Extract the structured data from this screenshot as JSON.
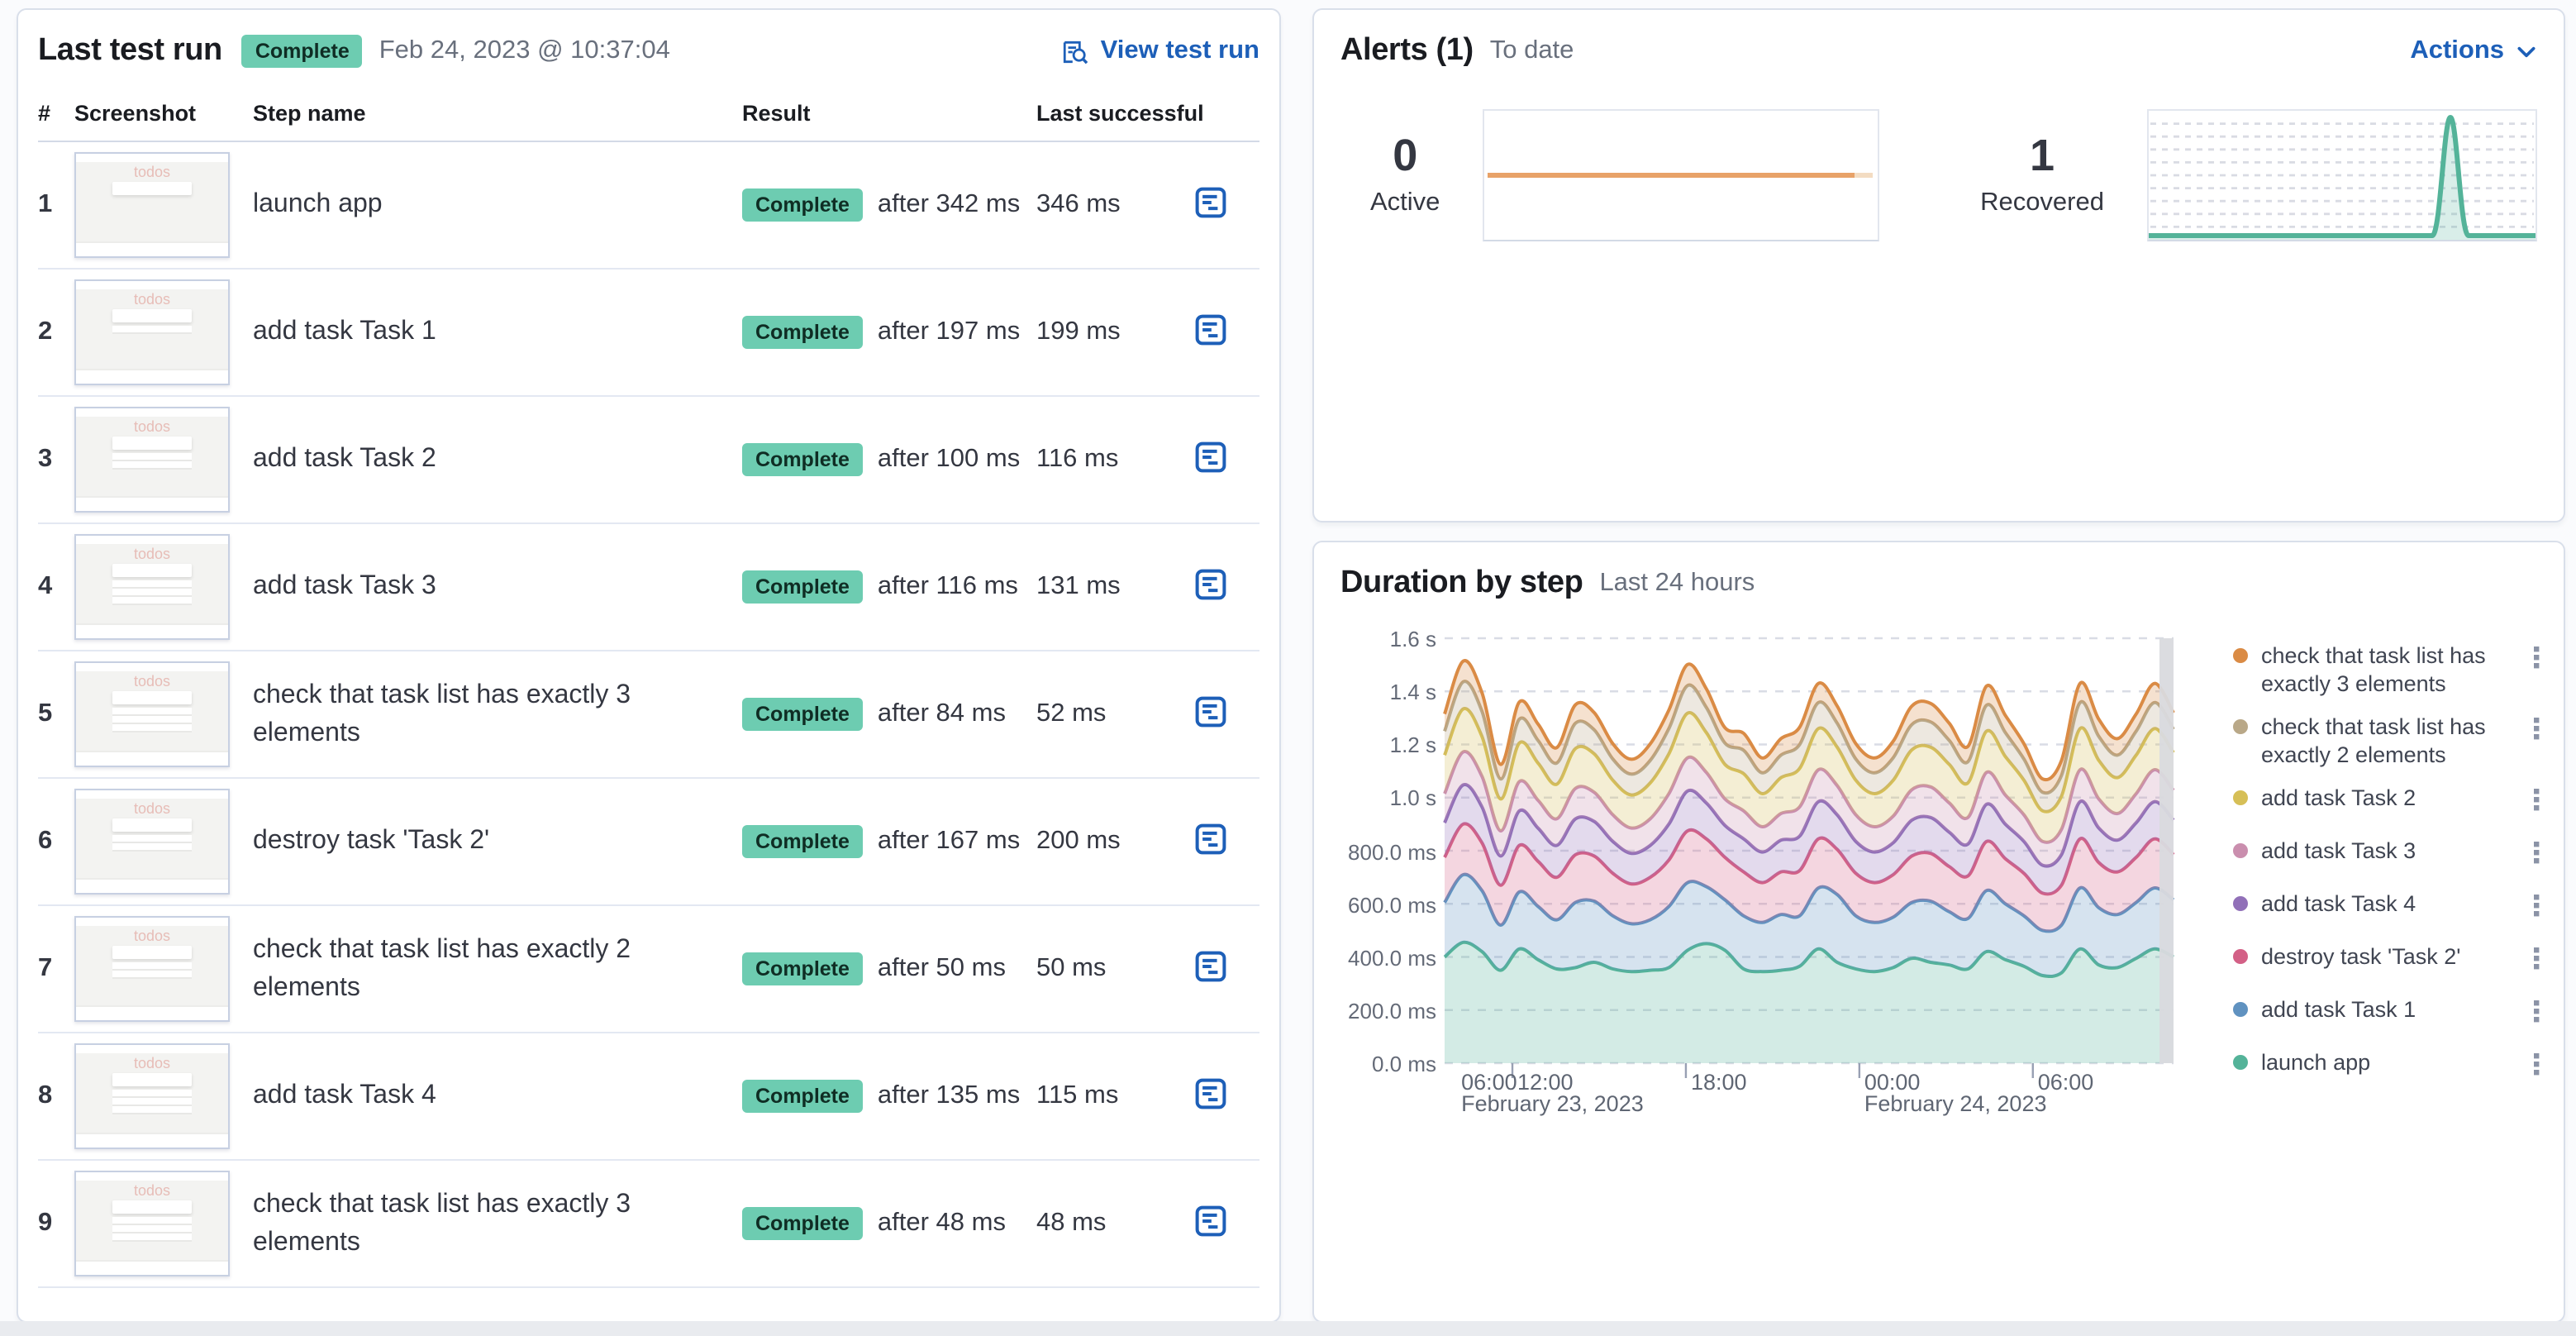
{
  "colors": {
    "link_blue": "#1d5fb8",
    "badge_green": "#6dccb1",
    "active_orange": "#e8a268",
    "recovered_green": "#54b399",
    "grid_dash": "#d9dce5",
    "current_bucket_bar": "#d9dade"
  },
  "left_panel": {
    "title": "Last test run",
    "status_badge": "Complete",
    "timestamp": "Feb 24, 2023 @ 10:37:04",
    "view_link": "View test run",
    "thumb_title": "todos",
    "columns": {
      "num": "#",
      "screenshot": "Screenshot",
      "step": "Step name",
      "result": "Result",
      "last_successful": "Last successful"
    },
    "steps": [
      {
        "num": "1",
        "name": "launch app",
        "result": "Complete",
        "after": "after 342 ms",
        "last": "346 ms",
        "thumb_tasks": 0
      },
      {
        "num": "2",
        "name": "add task Task 1",
        "result": "Complete",
        "after": "after 197 ms",
        "last": "199 ms",
        "thumb_tasks": 1
      },
      {
        "num": "3",
        "name": "add task Task 2",
        "result": "Complete",
        "after": "after 100 ms",
        "last": "116 ms",
        "thumb_tasks": 2
      },
      {
        "num": "4",
        "name": "add task Task 3",
        "result": "Complete",
        "after": "after 116 ms",
        "last": "131 ms",
        "thumb_tasks": 3
      },
      {
        "num": "5",
        "name": "check that task list has exactly 3 elements",
        "result": "Complete",
        "after": "after 84 ms",
        "last": "52 ms",
        "thumb_tasks": 3
      },
      {
        "num": "6",
        "name": "destroy task 'Task 2'",
        "result": "Complete",
        "after": "after 167 ms",
        "last": "200 ms",
        "thumb_tasks": 2
      },
      {
        "num": "7",
        "name": "check that task list has exactly 2 elements",
        "result": "Complete",
        "after": "after 50 ms",
        "last": "50 ms",
        "thumb_tasks": 2
      },
      {
        "num": "8",
        "name": "add task Task 4",
        "result": "Complete",
        "after": "after 135 ms",
        "last": "115 ms",
        "thumb_tasks": 3
      },
      {
        "num": "9",
        "name": "check that task list has exactly 3 elements",
        "result": "Complete",
        "after": "after 48 ms",
        "last": "48 ms",
        "thumb_tasks": 3
      }
    ]
  },
  "alerts_panel": {
    "title": "Alerts (1)",
    "subtitle": "To date",
    "actions_label": "Actions",
    "active": {
      "value": "0",
      "label": "Active",
      "chart": {
        "type": "line",
        "flat": true,
        "color": "#e8a268"
      }
    },
    "recovered": {
      "value": "1",
      "label": "Recovered",
      "chart": {
        "type": "area",
        "baseline": 0,
        "spike_value": 1,
        "spike_position": 0.78,
        "color": "#54b399"
      }
    }
  },
  "duration_panel": {
    "title": "Duration by step",
    "subtitle": "Last 24 hours",
    "chart_data": {
      "type": "area",
      "stacked": true,
      "unit": "ms",
      "ylim": [
        0,
        1600
      ],
      "grid": "dashed-horizontal",
      "legend_position": "right",
      "y_ticks": [
        "1.6 s",
        "1.4 s",
        "1.2 s",
        "1.0 s",
        "800.0 ms",
        "600.0 ms",
        "400.0 ms",
        "200.0 ms",
        "0.0 ms"
      ],
      "x_ticks": [
        {
          "label": "06:00",
          "pos": 0.016,
          "date": "February 23, 2023",
          "tick": false
        },
        {
          "label": "12:00",
          "pos": 0.093,
          "tick": true
        },
        {
          "label": "18:00",
          "pos": 0.331,
          "tick": true
        },
        {
          "label": "00:00",
          "pos": 0.569,
          "date": "February 24, 2023",
          "tick": true
        },
        {
          "label": "06:00",
          "pos": 0.807,
          "tick": true
        }
      ],
      "series_bottom_to_top": [
        {
          "name": "launch app",
          "color": "#54B399",
          "values": [
            400,
            455,
            420,
            350,
            430,
            390,
            355,
            360,
            380,
            355,
            345,
            350,
            360,
            425,
            450,
            425,
            355,
            345,
            350,
            365,
            430,
            380,
            355,
            345,
            360,
            395,
            380,
            370,
            355,
            420,
            390,
            365,
            330,
            340,
            430,
            370,
            360,
            395,
            430,
            400
          ]
        },
        {
          "name": "add task Task 1",
          "color": "#6092C0",
          "values": [
            205,
            255,
            230,
            170,
            215,
            200,
            185,
            245,
            230,
            200,
            180,
            190,
            230,
            255,
            215,
            190,
            200,
            185,
            210,
            190,
            230,
            255,
            200,
            185,
            190,
            210,
            230,
            200,
            190,
            230,
            210,
            190,
            170,
            180,
            230,
            215,
            200,
            210,
            230,
            215
          ]
        },
        {
          "name": "destroy task 'Task 2'",
          "color": "#D36086",
          "values": [
            170,
            190,
            180,
            150,
            175,
            170,
            160,
            180,
            170,
            160,
            150,
            160,
            175,
            195,
            180,
            160,
            165,
            150,
            160,
            170,
            185,
            170,
            160,
            150,
            160,
            175,
            180,
            170,
            160,
            185,
            170,
            160,
            140,
            150,
            185,
            170,
            160,
            170,
            185,
            170
          ]
        },
        {
          "name": "add task Task 4",
          "color": "#9170B8",
          "values": [
            130,
            148,
            135,
            110,
            130,
            125,
            120,
            135,
            130,
            120,
            115,
            120,
            135,
            150,
            135,
            120,
            125,
            115,
            120,
            130,
            140,
            130,
            120,
            115,
            120,
            135,
            135,
            130,
            120,
            140,
            130,
            120,
            105,
            115,
            140,
            130,
            120,
            130,
            140,
            130
          ]
        },
        {
          "name": "add task Task 3",
          "color": "#CA8EAE",
          "values": [
            110,
            124,
            115,
            95,
            110,
            105,
            100,
            115,
            110,
            100,
            95,
            100,
            115,
            125,
            115,
            100,
            105,
            95,
            100,
            110,
            120,
            110,
            100,
            95,
            100,
            115,
            115,
            110,
            100,
            120,
            110,
            100,
            90,
            95,
            120,
            110,
            100,
            110,
            120,
            112
          ]
        },
        {
          "name": "add task Task 2",
          "color": "#D6BF57",
          "values": [
            145,
            162,
            150,
            120,
            145,
            140,
            130,
            150,
            145,
            130,
            125,
            135,
            150,
            168,
            150,
            130,
            140,
            125,
            135,
            145,
            155,
            145,
            130,
            125,
            135,
            150,
            150,
            145,
            130,
            155,
            145,
            130,
            115,
            125,
            155,
            145,
            135,
            145,
            155,
            142
          ]
        },
        {
          "name": "check that task list has exactly 2 elements",
          "color": "#B9A888",
          "values": [
            90,
            102,
            95,
            75,
            90,
            85,
            80,
            95,
            90,
            80,
            78,
            85,
            95,
            104,
            95,
            80,
            88,
            78,
            85,
            90,
            98,
            90,
            80,
            78,
            85,
            95,
            95,
            90,
            80,
            98,
            90,
            80,
            70,
            78,
            98,
            90,
            85,
            90,
            98,
            88
          ]
        },
        {
          "name": "check that task list has exactly 3 elements",
          "color": "#DA8B45",
          "values": [
            65,
            78,
            70,
            55,
            65,
            62,
            58,
            70,
            65,
            58,
            56,
            62,
            70,
            79,
            70,
            58,
            64,
            56,
            62,
            65,
            72,
            65,
            58,
            56,
            62,
            70,
            70,
            65,
            58,
            72,
            65,
            58,
            50,
            56,
            72,
            65,
            62,
            65,
            72,
            62
          ]
        }
      ],
      "legend": [
        {
          "label": "check that task list has exactly 3 elements",
          "color": "#DA8B45"
        },
        {
          "label": "check that task list has exactly 2 elements",
          "color": "#B9A888"
        },
        {
          "label": "add task Task 2",
          "color": "#D6BF57"
        },
        {
          "label": "add task Task 3",
          "color": "#CA8EAE"
        },
        {
          "label": "add task Task 4",
          "color": "#9170B8"
        },
        {
          "label": "destroy task 'Task 2'",
          "color": "#D36086"
        },
        {
          "label": "add task Task 1",
          "color": "#6092C0"
        },
        {
          "label": "launch app",
          "color": "#54B399"
        }
      ]
    }
  }
}
